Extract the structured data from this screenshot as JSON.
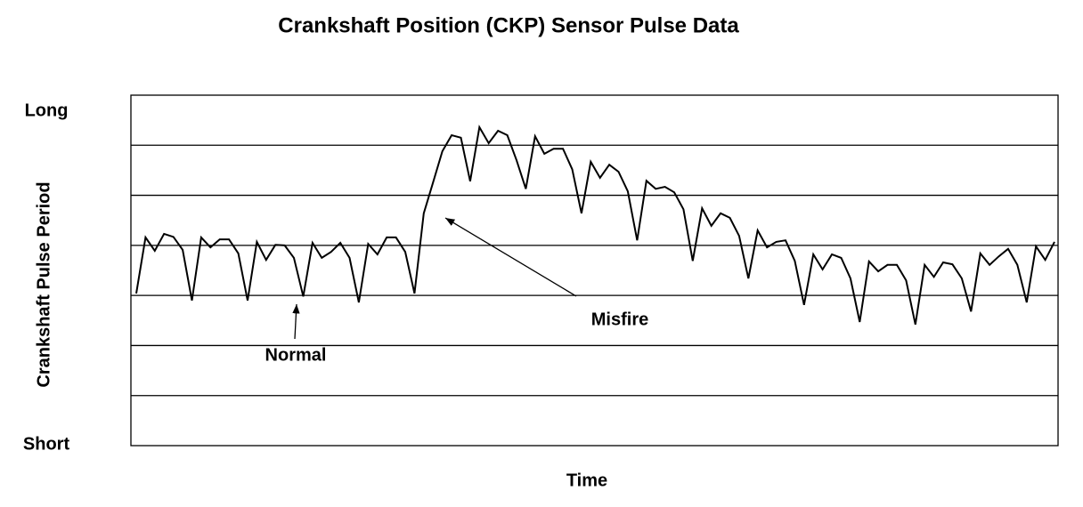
{
  "chart_data": {
    "type": "line",
    "title": "Crankshaft Position (CKP) Sensor Pulse Data",
    "x_label": "Time",
    "y_label": "Crankshaft Pulse Period",
    "ylim": [
      0,
      7
    ],
    "yticks": [
      {
        "value": 0,
        "label": "Short"
      },
      {
        "value": 7,
        "label": "Long"
      }
    ],
    "ygrid": [
      1,
      2,
      3,
      4,
      5,
      6
    ],
    "grid": true,
    "color": "#000000",
    "annotations": [
      "Normal",
      "Misfire"
    ],
    "values": [
      3.04,
      4.16,
      3.89,
      4.23,
      4.17,
      3.91,
      2.9,
      4.16,
      3.96,
      4.12,
      4.12,
      3.84,
      2.9,
      4.07,
      3.71,
      4.01,
      4.0,
      3.75,
      2.98,
      4.05,
      3.75,
      3.87,
      4.05,
      3.75,
      2.86,
      4.03,
      3.82,
      4.16,
      4.16,
      3.87,
      3.04,
      4.64,
      5.26,
      5.88,
      6.2,
      6.15,
      5.28,
      6.36,
      6.04,
      6.29,
      6.2,
      5.7,
      5.13,
      6.18,
      5.83,
      5.93,
      5.93,
      5.52,
      4.64,
      5.67,
      5.35,
      5.61,
      5.47,
      5.08,
      4.1,
      5.29,
      5.13,
      5.17,
      5.06,
      4.72,
      3.69,
      4.74,
      4.39,
      4.64,
      4.55,
      4.19,
      3.34,
      4.3,
      3.96,
      4.07,
      4.1,
      3.69,
      2.81,
      3.82,
      3.52,
      3.82,
      3.75,
      3.34,
      2.47,
      3.68,
      3.48,
      3.61,
      3.61,
      3.3,
      2.42,
      3.61,
      3.37,
      3.66,
      3.62,
      3.34,
      2.68,
      3.84,
      3.61,
      3.78,
      3.93,
      3.61,
      2.86,
      3.98,
      3.71,
      4.07
    ]
  }
}
